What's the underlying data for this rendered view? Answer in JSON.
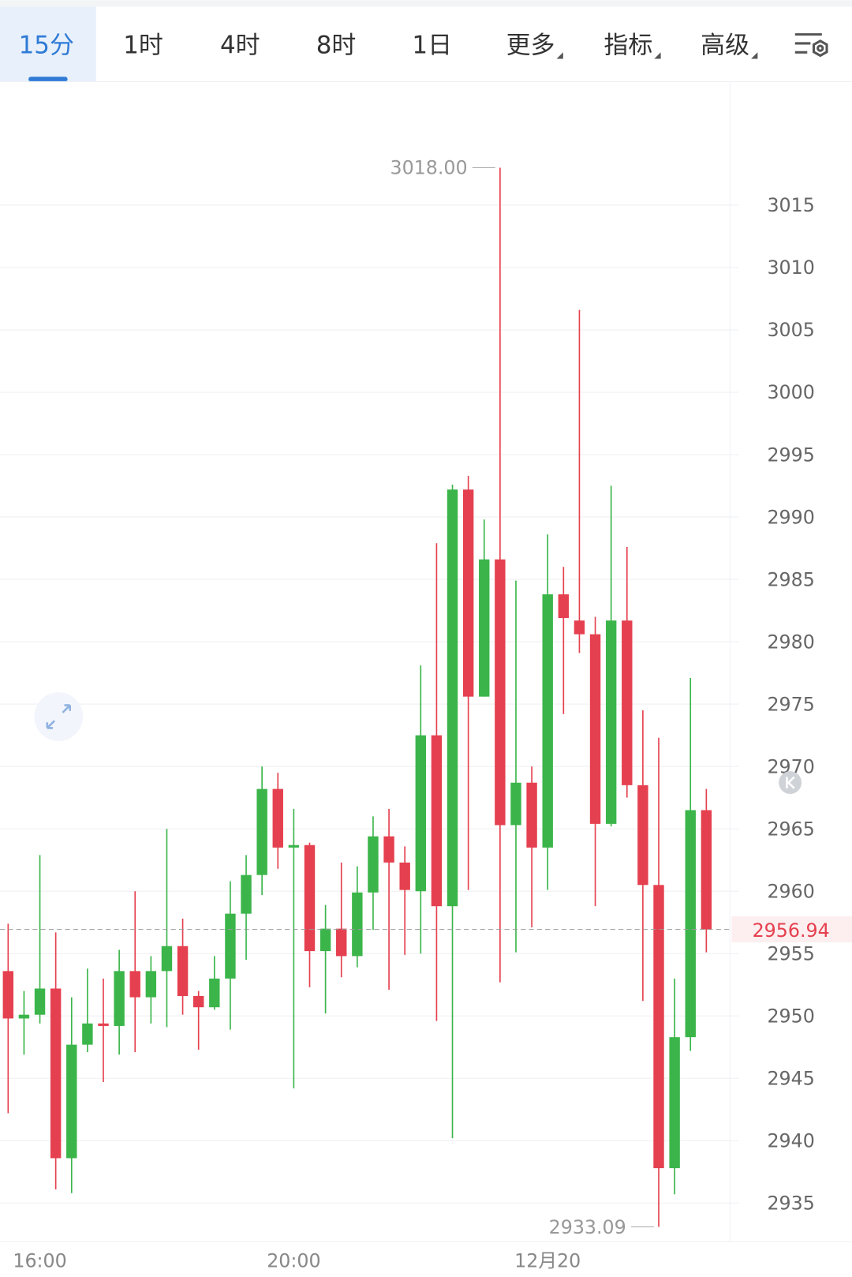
{
  "tabs": {
    "items": [
      "15分",
      "1时",
      "4时",
      "8时",
      "1日",
      "更多",
      "指标",
      "高级"
    ],
    "active": 0
  },
  "chart_data": {
    "type": "candlestick",
    "categories": [
      null,
      null,
      "16:00",
      null,
      null,
      null,
      null,
      null,
      null,
      null,
      null,
      null,
      null,
      null,
      null,
      null,
      null,
      null,
      "20:00",
      null,
      null,
      null,
      null,
      null,
      null,
      null,
      null,
      null,
      null,
      null,
      null,
      null,
      null,
      null,
      "12月20",
      null,
      null,
      null,
      null,
      null,
      null,
      null,
      null,
      null,
      null
    ],
    "open": [
      2953.6,
      2949.8,
      2950.1,
      2952.2,
      2938.6,
      2947.7,
      2949.4,
      2949.2,
      2953.6,
      2951.5,
      2953.6,
      2955.6,
      2951.6,
      2950.7,
      2953.0,
      2958.2,
      2961.3,
      2968.2,
      2963.5,
      2963.7,
      2955.2,
      2957.0,
      2954.8,
      2959.9,
      2964.4,
      2962.3,
      2960.0,
      2972.5,
      2958.8,
      2992.2,
      2975.6,
      2986.6,
      2965.3,
      2968.7,
      2963.5,
      2983.8,
      2981.7,
      2980.6,
      2965.4,
      2981.7,
      2968.5,
      2960.5,
      2937.8,
      2948.3,
      2966.5
    ],
    "high": [
      2957.4,
      2952.0,
      2962.9,
      2956.7,
      2951.5,
      2953.8,
      2953.0,
      2955.3,
      2960.0,
      2954.8,
      2965.0,
      2957.8,
      2952.0,
      2954.8,
      2960.8,
      2962.9,
      2970.0,
      2969.5,
      2966.6,
      2963.9,
      2958.9,
      2962.3,
      2962.0,
      2966.0,
      2966.6,
      2963.6,
      2978.1,
      2987.9,
      2992.6,
      2993.3,
      2989.8,
      3018.0,
      2984.9,
      2970.0,
      2988.6,
      2986.0,
      3006.6,
      2982.0,
      2992.5,
      2987.6,
      2974.5,
      2972.3,
      2953.0,
      2977.1,
      2968.2
    ],
    "low": [
      2942.2,
      2946.9,
      2949.4,
      2936.1,
      2935.8,
      2947.1,
      2944.7,
      2946.9,
      2947.1,
      2949.4,
      2949.1,
      2950.1,
      2947.3,
      2950.5,
      2948.9,
      2954.5,
      2959.7,
      2961.8,
      2944.2,
      2952.3,
      2950.2,
      2953.1,
      2953.9,
      2956.9,
      2952.1,
      2954.9,
      2955.0,
      2949.6,
      2940.2,
      2960.1,
      2975.6,
      2952.7,
      2955.1,
      2957.1,
      2960.1,
      2974.2,
      2979.1,
      2958.8,
      2965.2,
      2967.5,
      2951.2,
      2933.09,
      2935.7,
      2947.2,
      2955.1
    ],
    "close": [
      2949.8,
      2950.1,
      2952.2,
      2938.6,
      2947.7,
      2949.4,
      2949.2,
      2953.6,
      2951.5,
      2953.6,
      2955.6,
      2951.6,
      2950.7,
      2953.0,
      2958.2,
      2961.3,
      2968.2,
      2963.5,
      2963.7,
      2955.2,
      2957.0,
      2954.8,
      2959.9,
      2964.4,
      2962.3,
      2960.1,
      2972.5,
      2958.8,
      2992.2,
      2975.6,
      2986.6,
      2965.3,
      2968.7,
      2963.5,
      2983.8,
      2981.9,
      2980.6,
      2965.4,
      2981.7,
      2968.5,
      2960.5,
      2937.8,
      2948.3,
      2966.5,
      2956.94
    ],
    "up_color": "#3bb54a",
    "down_color": "#e5404f",
    "ylim": [
      2931.9,
      3024.9
    ],
    "yticks": [
      2935,
      2940,
      2945,
      2950,
      2955,
      2960,
      2965,
      2970,
      2975,
      2980,
      2985,
      2990,
      2995,
      3000,
      3005,
      3010,
      3015
    ],
    "grid": true,
    "max_label": {
      "value": 3018.0,
      "label": "3018.00"
    },
    "min_label": {
      "value": 2933.09,
      "label": "2933.09"
    },
    "last_price": 2956.94
  }
}
